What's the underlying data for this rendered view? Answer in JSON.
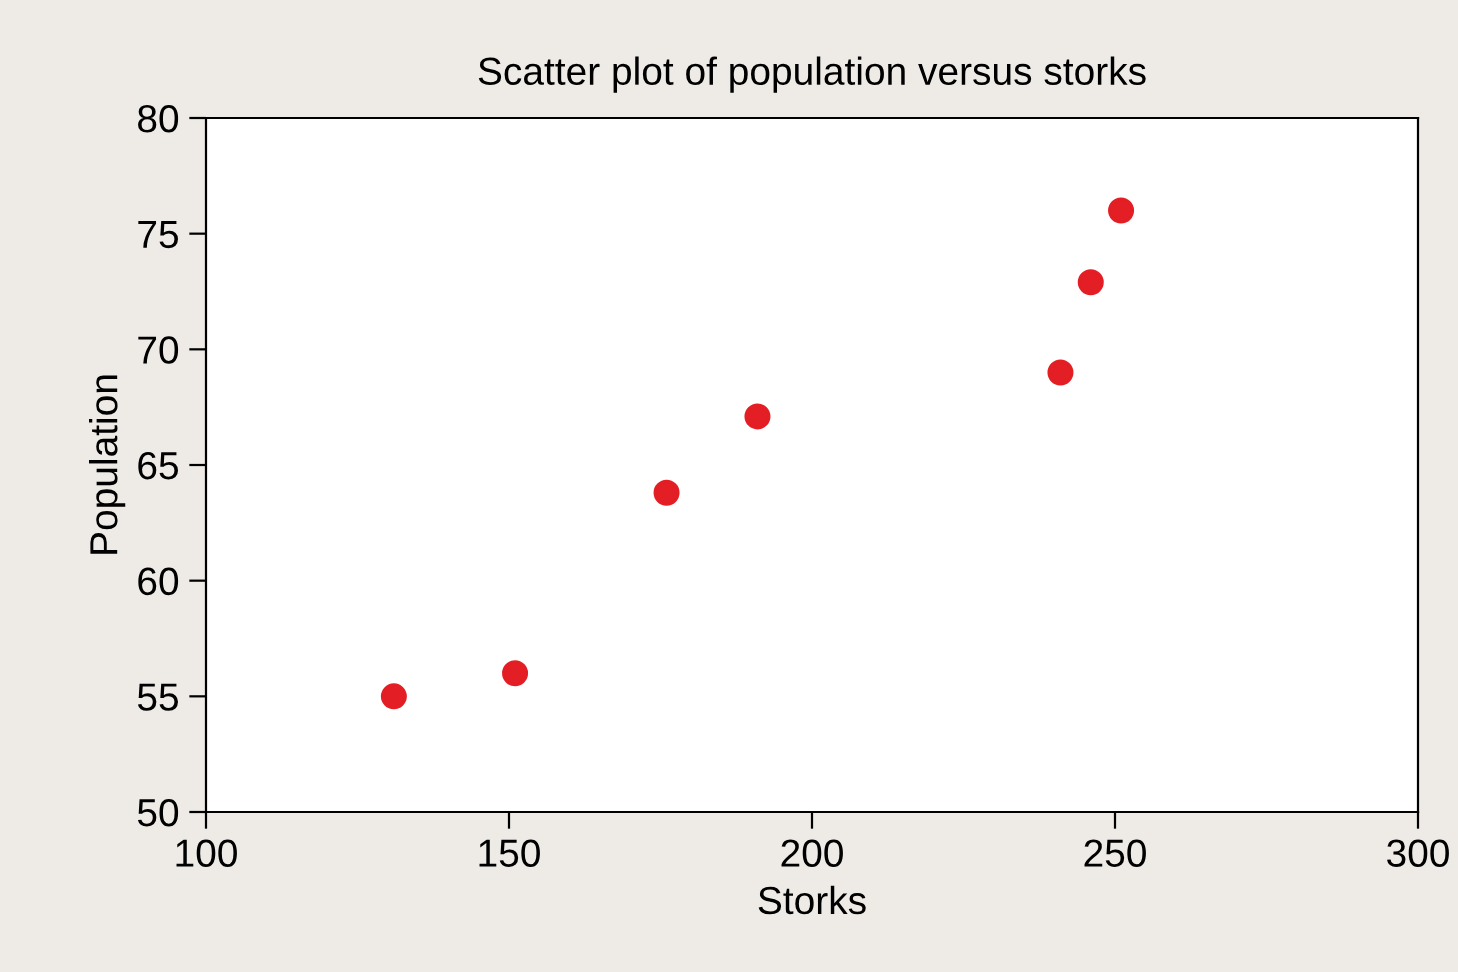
{
  "chart_data": {
    "type": "scatter",
    "title": "Scatter plot of population versus storks",
    "xlabel": "Storks",
    "ylabel": "Population",
    "series": [
      {
        "color": "#e31e24",
        "x": [
          131,
          151,
          176,
          191,
          241,
          246,
          251
        ],
        "values": [
          55,
          56,
          63.8,
          67.1,
          69,
          72.9,
          76
        ]
      }
    ],
    "xlim": [
      100,
      300
    ],
    "xticks": [
      100,
      150,
      200,
      250,
      300
    ],
    "ylim": [
      50,
      80
    ],
    "yticks": [
      50,
      55,
      60,
      65,
      70,
      75,
      80
    ],
    "grid": false,
    "legend": false,
    "marker": "circle"
  }
}
